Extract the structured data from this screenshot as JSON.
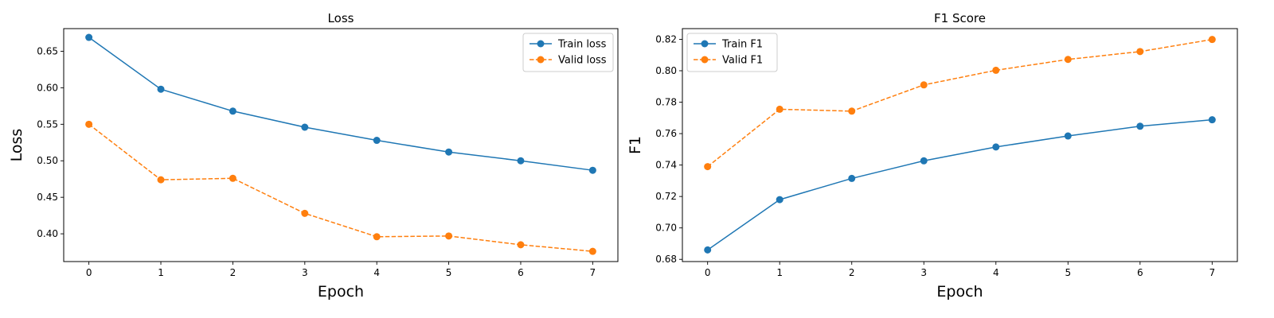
{
  "chart_data": [
    {
      "type": "line",
      "title": "Loss",
      "xlabel": "Epoch",
      "ylabel": "Loss",
      "x": [
        0,
        1,
        2,
        3,
        4,
        5,
        6,
        7
      ],
      "xticks": [
        "0",
        "1",
        "2",
        "3",
        "4",
        "5",
        "6",
        "7"
      ],
      "xlim": [
        -0.35,
        7.35
      ],
      "yticks": [
        "0.40",
        "0.45",
        "0.50",
        "0.55",
        "0.60",
        "0.65"
      ],
      "ylim": [
        0.362,
        0.681
      ],
      "grid": false,
      "legend": "top-right",
      "series": [
        {
          "name": "Train loss",
          "color": "#1f77b4",
          "style": "solid",
          "values": [
            0.669,
            0.598,
            0.568,
            0.546,
            0.528,
            0.512,
            0.5,
            0.487
          ]
        },
        {
          "name": "Valid loss",
          "color": "#ff7f0e",
          "style": "dashed",
          "values": [
            0.55,
            0.474,
            0.476,
            0.428,
            0.396,
            0.397,
            0.385,
            0.376
          ]
        }
      ]
    },
    {
      "type": "line",
      "title": "F1 Score",
      "xlabel": "Epoch",
      "ylabel": "F1",
      "x": [
        0,
        1,
        2,
        3,
        4,
        5,
        6,
        7
      ],
      "xticks": [
        "0",
        "1",
        "2",
        "3",
        "4",
        "5",
        "6",
        "7"
      ],
      "xlim": [
        -0.35,
        7.35
      ],
      "yticks": [
        "0.68",
        "0.70",
        "0.72",
        "0.74",
        "0.76",
        "0.78",
        "0.80",
        "0.82"
      ],
      "ylim": [
        0.6786,
        0.8268
      ],
      "grid": false,
      "legend": "top-left",
      "series": [
        {
          "name": "Train F1",
          "color": "#1f77b4",
          "style": "solid",
          "values": [
            0.686,
            0.718,
            0.7315,
            0.7427,
            0.7515,
            0.7585,
            0.7647,
            0.7688
          ]
        },
        {
          "name": "Valid F1",
          "color": "#ff7f0e",
          "style": "dashed",
          "values": [
            0.739,
            0.7755,
            0.7743,
            0.791,
            0.8003,
            0.8072,
            0.8122,
            0.8199
          ]
        }
      ]
    }
  ]
}
